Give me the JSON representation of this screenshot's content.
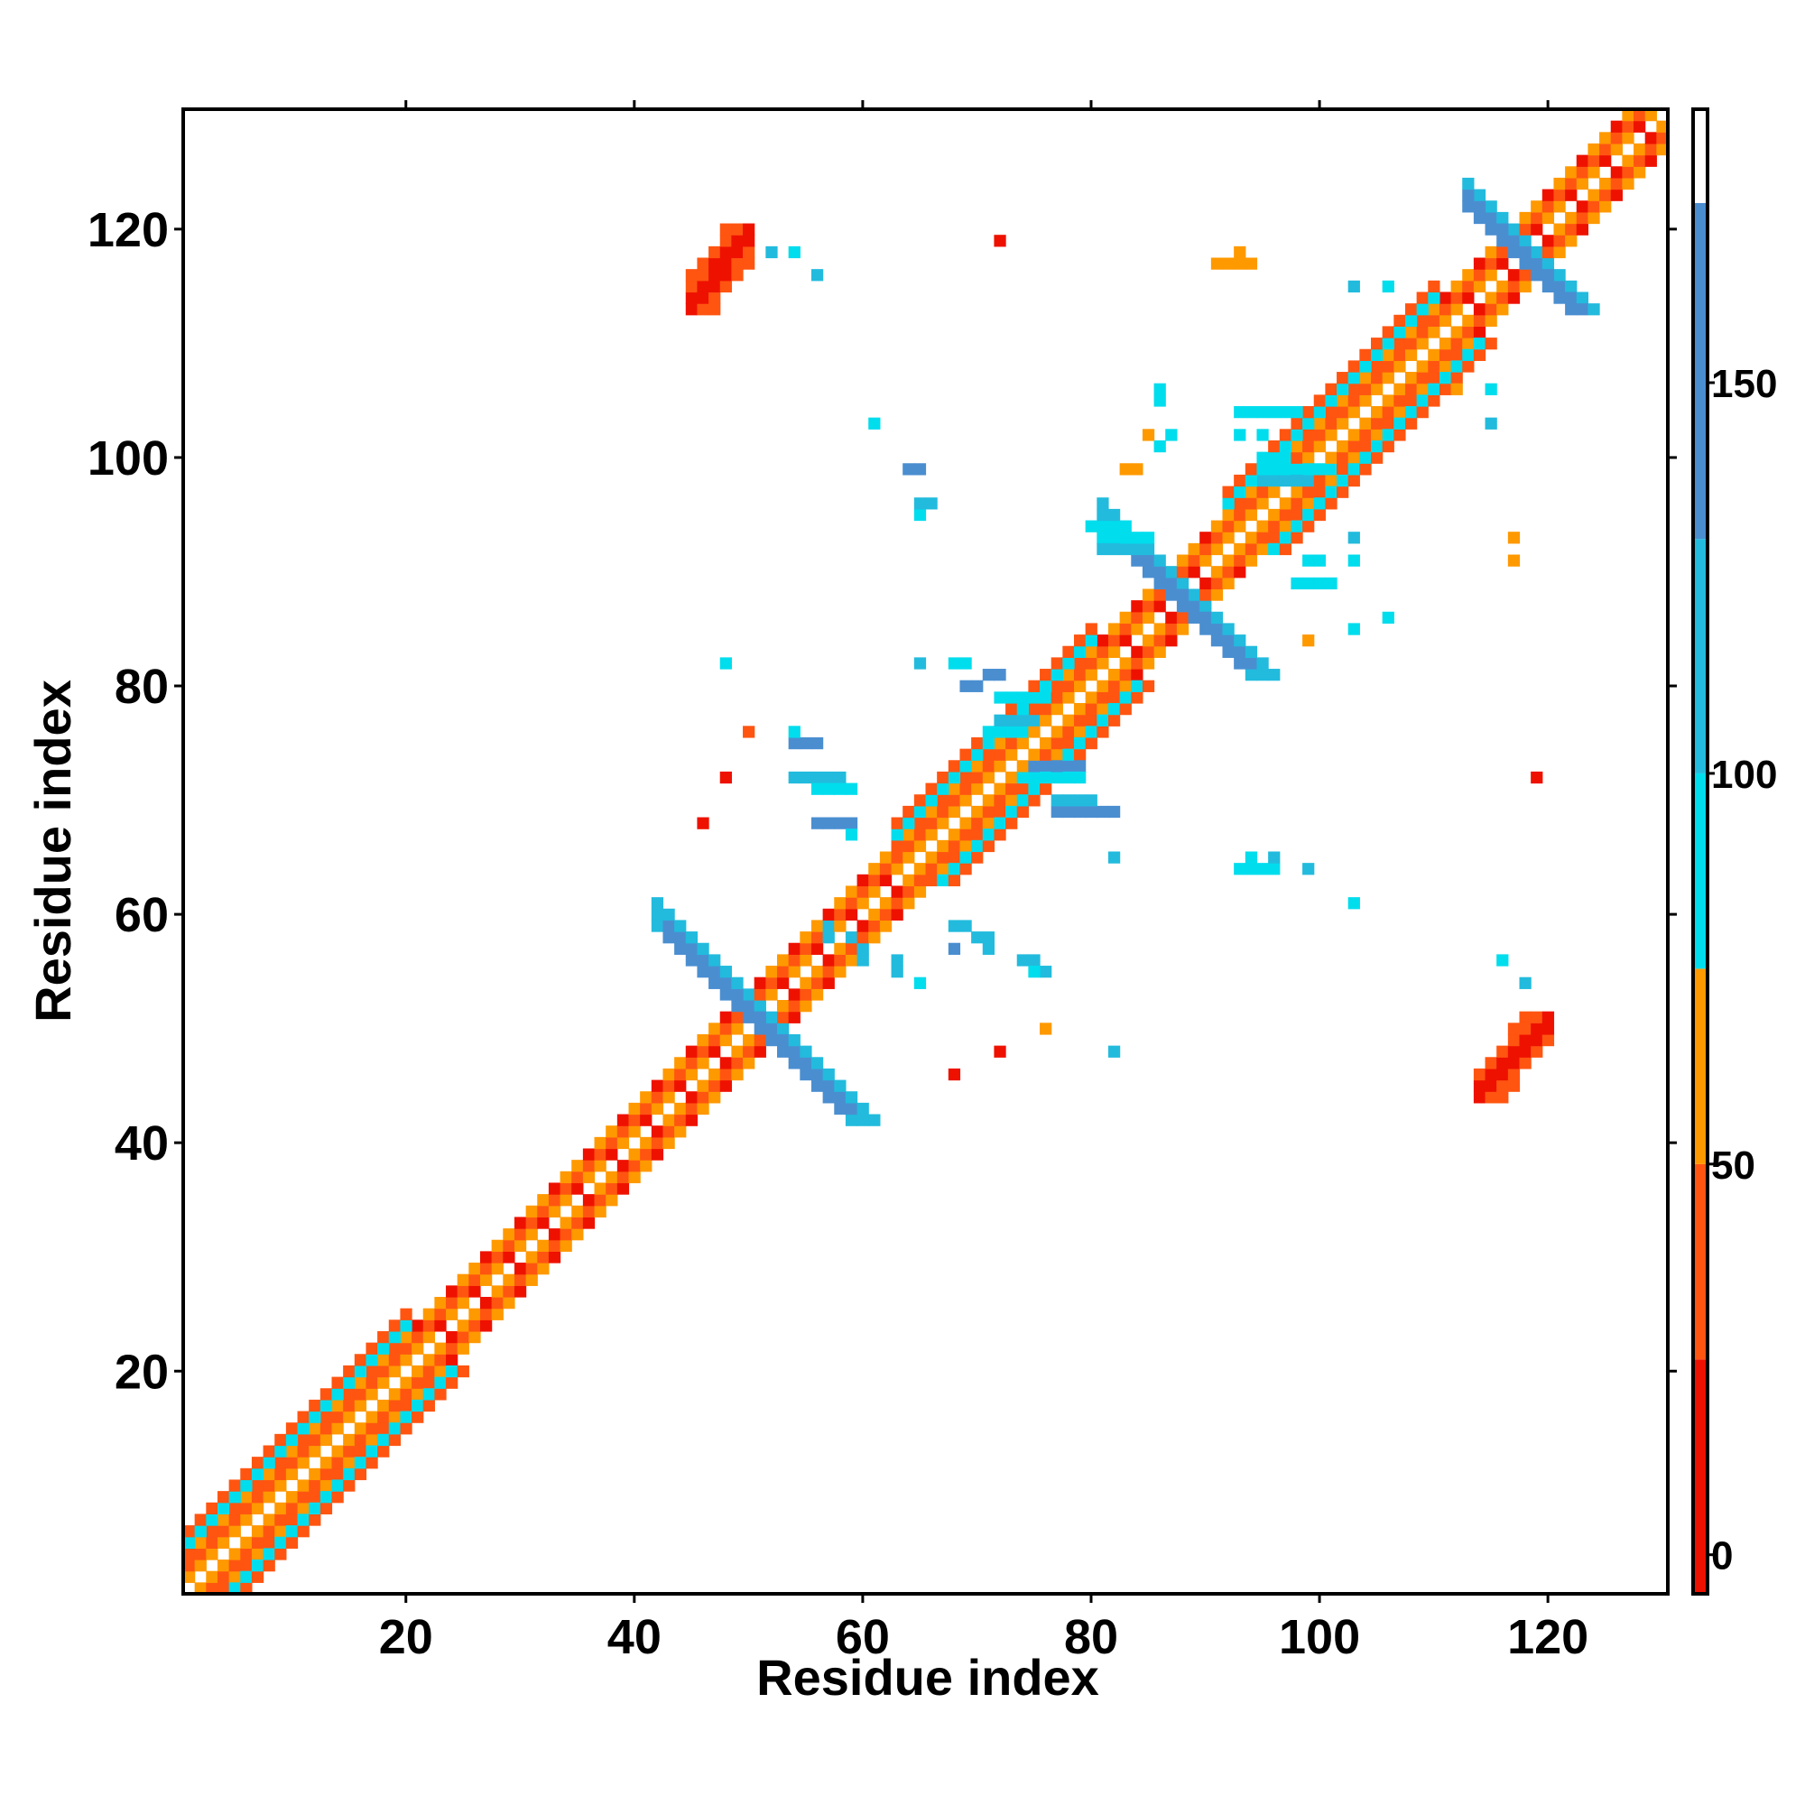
{
  "chart_data": {
    "type": "heatmap",
    "title": "",
    "xlabel": "Residue index",
    "ylabel": "Residue index",
    "xlim": [
      0.5,
      130.5
    ],
    "ylim": [
      0.5,
      130.5
    ],
    "x_ticks": [
      "20",
      "40",
      "60",
      "80",
      "100",
      "120"
    ],
    "x_tick_values": [
      20,
      40,
      60,
      80,
      100,
      120
    ],
    "y_ticks": [
      "20",
      "40",
      "60",
      "80",
      "100",
      "120"
    ],
    "y_tick_values": [
      20,
      40,
      60,
      80,
      100,
      120
    ],
    "grid": false,
    "colorbar": {
      "range": [
        -5,
        185
      ],
      "ticks": [
        "0",
        "50",
        "100",
        "150"
      ],
      "tick_values": [
        0,
        50,
        100,
        150
      ],
      "stops": [
        {
          "from": -5,
          "to": 25,
          "color": "#ee1100"
        },
        {
          "from": 25,
          "to": 50,
          "color": "#ff5511"
        },
        {
          "from": 50,
          "to": 75,
          "color": "#ff9900"
        },
        {
          "from": 75,
          "to": 100,
          "color": "#00dded"
        },
        {
          "from": 100,
          "to": 130,
          "color": "#22bbdd"
        },
        {
          "from": 130,
          "to": 173,
          "color": "#4a8ed0"
        },
        {
          "from": 173,
          "to": 185,
          "color": "#ffffff"
        }
      ]
    },
    "colors": {
      "red": "#ee1100",
      "orange_red": "#ff5511",
      "orange": "#ff9900",
      "cyan": "#00dded",
      "light_blue": "#22bbdd",
      "steel_blue": "#4a8ed0"
    },
    "regions": [
      {
        "kind": "diagonal_band",
        "from": 1,
        "to": 130,
        "pattern": "alternating",
        "colors": [
          "orange_red",
          "orange",
          "red"
        ]
      },
      {
        "kind": "helix_band",
        "from": 1,
        "to": 20,
        "offset": 4,
        "colors": [
          "cyan",
          "orange_red"
        ]
      },
      {
        "kind": "helix_band",
        "from": 63,
        "to": 80,
        "offset": 4,
        "colors": [
          "cyan",
          "orange_red"
        ]
      },
      {
        "kind": "helix_band",
        "from": 92,
        "to": 110,
        "offset": 4,
        "colors": [
          "cyan",
          "orange_red"
        ]
      },
      {
        "kind": "antiparallel_strip",
        "center": 51,
        "from": 42,
        "to": 60,
        "colors": [
          "steel_blue",
          "light_blue"
        ]
      },
      {
        "kind": "antiparallel_strip",
        "center": 88,
        "from": 81,
        "to": 95,
        "colors": [
          "steel_blue",
          "light_blue"
        ]
      },
      {
        "kind": "antiparallel_strip",
        "center": 101,
        "from": 79,
        "to": 85,
        "span": [
          114,
          122
        ],
        "colors": [
          "steel_blue",
          "light_blue"
        ]
      },
      {
        "kind": "parallel_block",
        "x": [
          45,
          50
        ],
        "y": [
          113,
          120
        ],
        "colors": [
          "red",
          "orange_red"
        ]
      },
      {
        "kind": "parallel_block",
        "x": [
          114,
          120
        ],
        "y": [
          44,
          51
        ],
        "colors": [
          "red",
          "orange_red"
        ]
      }
    ],
    "points": [
      [
        116,
        56,
        "cyan"
      ],
      [
        118,
        54,
        "light_blue"
      ],
      [
        82,
        48,
        "light_blue"
      ],
      [
        72,
        48,
        "red"
      ],
      [
        76,
        50,
        "orange"
      ],
      [
        68,
        46,
        "red"
      ],
      [
        103,
        61,
        "cyan"
      ],
      [
        96,
        65,
        "light_blue"
      ],
      [
        94,
        65,
        "cyan"
      ],
      [
        99,
        64,
        "light_blue"
      ],
      [
        82,
        65,
        "light_blue"
      ],
      [
        46,
        68,
        "red"
      ],
      [
        48,
        72,
        "red"
      ],
      [
        50,
        76,
        "orange_red"
      ],
      [
        48,
        82,
        "cyan"
      ],
      [
        65,
        82,
        "light_blue"
      ],
      [
        119,
        72,
        "red"
      ],
      [
        99,
        84,
        "orange"
      ],
      [
        103,
        85,
        "cyan"
      ],
      [
        106,
        86,
        "cyan"
      ],
      [
        103,
        93,
        "light_blue"
      ],
      [
        103,
        91,
        "cyan"
      ],
      [
        117,
        93,
        "orange"
      ],
      [
        117,
        91,
        "orange"
      ],
      [
        65,
        95,
        "cyan"
      ],
      [
        65,
        96,
        "light_blue"
      ],
      [
        66,
        96,
        "light_blue"
      ],
      [
        64,
        99,
        "steel_blue"
      ],
      [
        65,
        99,
        "steel_blue"
      ],
      [
        83,
        99,
        "orange"
      ],
      [
        84,
        99,
        "orange"
      ],
      [
        61,
        103,
        "cyan"
      ],
      [
        86,
        101,
        "cyan"
      ],
      [
        85,
        102,
        "orange"
      ],
      [
        87,
        102,
        "cyan"
      ],
      [
        93,
        102,
        "cyan"
      ],
      [
        95,
        102,
        "cyan"
      ],
      [
        86,
        106,
        "cyan"
      ],
      [
        86,
        105,
        "cyan"
      ],
      [
        115,
        106,
        "cyan"
      ],
      [
        115,
        103,
        "light_blue"
      ],
      [
        112,
        106,
        "orange"
      ],
      [
        103,
        115,
        "light_blue"
      ],
      [
        106,
        115,
        "cyan"
      ],
      [
        52,
        118,
        "light_blue"
      ],
      [
        54,
        118,
        "cyan"
      ],
      [
        56,
        116,
        "light_blue"
      ],
      [
        72,
        119,
        "red"
      ],
      [
        91,
        117,
        "orange"
      ],
      [
        92,
        117,
        "orange"
      ],
      [
        93,
        117,
        "orange"
      ],
      [
        94,
        117,
        "orange"
      ],
      [
        93,
        118,
        "orange"
      ],
      [
        57,
        58,
        "light_blue"
      ],
      [
        57,
        59,
        "light_blue"
      ],
      [
        59,
        58,
        "light_blue"
      ],
      [
        60,
        57,
        "light_blue"
      ],
      [
        60,
        56,
        "light_blue"
      ],
      [
        63,
        55,
        "light_blue"
      ],
      [
        63,
        56,
        "light_blue"
      ],
      [
        65,
        54,
        "cyan"
      ],
      [
        74,
        56,
        "light_blue"
      ],
      [
        75,
        56,
        "light_blue"
      ],
      [
        76,
        55,
        "light_blue"
      ],
      [
        75,
        55,
        "cyan"
      ],
      [
        70,
        58,
        "light_blue"
      ],
      [
        71,
        58,
        "light_blue"
      ],
      [
        68,
        59,
        "light_blue"
      ],
      [
        69,
        59,
        "light_blue"
      ],
      [
        68,
        57,
        "steel_blue"
      ],
      [
        71,
        57,
        "light_blue"
      ]
    ],
    "segments": [
      {
        "x": [
          54,
          56
        ],
        "y": 75,
        "color": "steel_blue"
      },
      {
        "x": [
          54,
          54
        ],
        "y": 76,
        "color": "cyan"
      },
      {
        "x": [
          54,
          58
        ],
        "y": 72,
        "color": "light_blue"
      },
      {
        "x": [
          56,
          59
        ],
        "y": 71,
        "color": "cyan"
      },
      {
        "x": [
          56,
          59
        ],
        "y": 68,
        "color": "steel_blue"
      },
      {
        "x": [
          59,
          59
        ],
        "y": 67,
        "color": "cyan"
      },
      {
        "x": [
          77,
          82
        ],
        "y": 69,
        "color": "steel_blue"
      },
      {
        "x": [
          75,
          79
        ],
        "y": 73,
        "color": "steel_blue"
      },
      {
        "x": [
          69,
          70
        ],
        "y": 80,
        "color": "steel_blue"
      },
      {
        "x": [
          71,
          72
        ],
        "y": 81,
        "color": "steel_blue"
      },
      {
        "x": [
          68,
          69
        ],
        "y": 82,
        "color": "cyan"
      },
      {
        "x": [
          72,
          76
        ],
        "y": 79,
        "color": "cyan"
      },
      {
        "x": [
          71,
          74
        ],
        "y": 76,
        "color": "cyan"
      },
      {
        "x": [
          72,
          75
        ],
        "y": 77,
        "color": "light_blue"
      },
      {
        "x": [
          74,
          79
        ],
        "y": 72,
        "color": "cyan"
      },
      {
        "x": [
          77,
          80
        ],
        "y": 70,
        "color": "light_blue"
      },
      {
        "x": [
          93,
          96
        ],
        "y": 64,
        "color": "cyan"
      },
      {
        "x": [
          93,
          98
        ],
        "y": 104,
        "color": "cyan"
      },
      {
        "x": [
          95,
          97
        ],
        "y": 100,
        "color": "cyan"
      },
      {
        "x": [
          96,
          101
        ],
        "y": 99,
        "color": "cyan"
      },
      {
        "x": [
          95,
          99
        ],
        "y": 98,
        "color": "light_blue"
      },
      {
        "x": [
          81,
          85
        ],
        "y": 93,
        "color": "cyan"
      },
      {
        "x": [
          80,
          83
        ],
        "y": 94,
        "color": "cyan"
      },
      {
        "x": [
          81,
          84
        ],
        "y": 92,
        "color": "light_blue"
      },
      {
        "x": [
          98,
          101
        ],
        "y": 89,
        "color": "cyan"
      },
      {
        "x": [
          99,
          100
        ],
        "y": 91,
        "color": "cyan"
      }
    ]
  }
}
